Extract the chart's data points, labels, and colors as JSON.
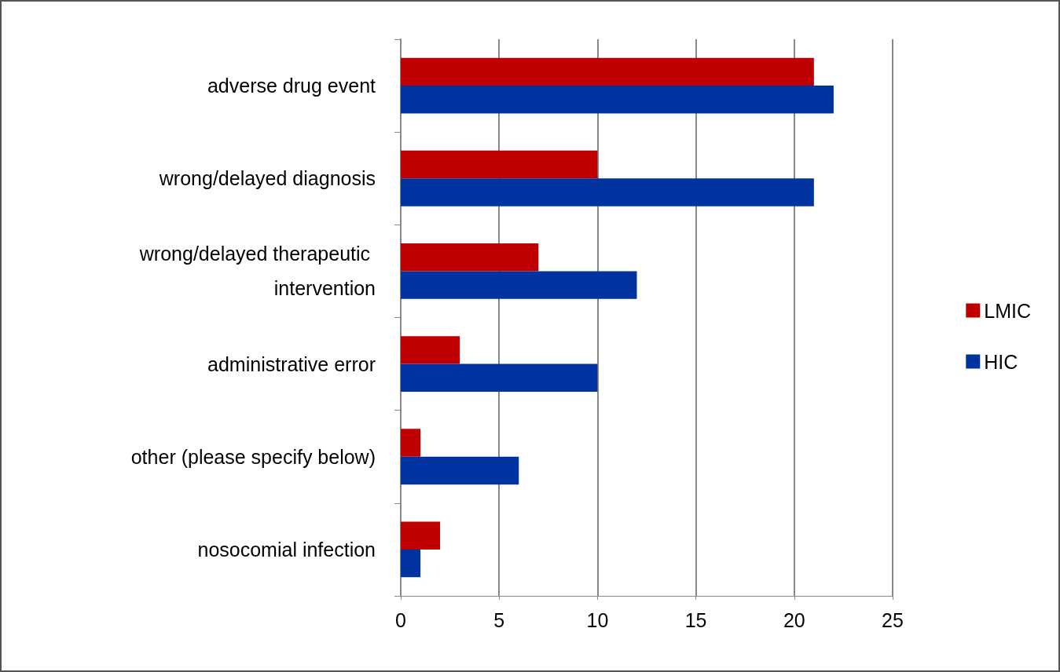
{
  "chart_data": {
    "type": "bar",
    "orientation": "horizontal",
    "categories": [
      "adverse drug event",
      "wrong/delayed diagnosis",
      "wrong/delayed therapeutic intervention",
      "administrative error",
      "other (please specify below)",
      "nosocomial infection"
    ],
    "series": [
      {
        "name": "LMIC",
        "color": "#c00000",
        "values": [
          21,
          10,
          7,
          3,
          1,
          2
        ]
      },
      {
        "name": "HIC",
        "color": "#0033a0",
        "values": [
          22,
          21,
          12,
          10,
          6,
          1
        ]
      }
    ],
    "xlim": [
      0,
      25
    ],
    "xticks": [
      0,
      5,
      10,
      15,
      20,
      25
    ],
    "grid": "x",
    "legend": "right"
  }
}
